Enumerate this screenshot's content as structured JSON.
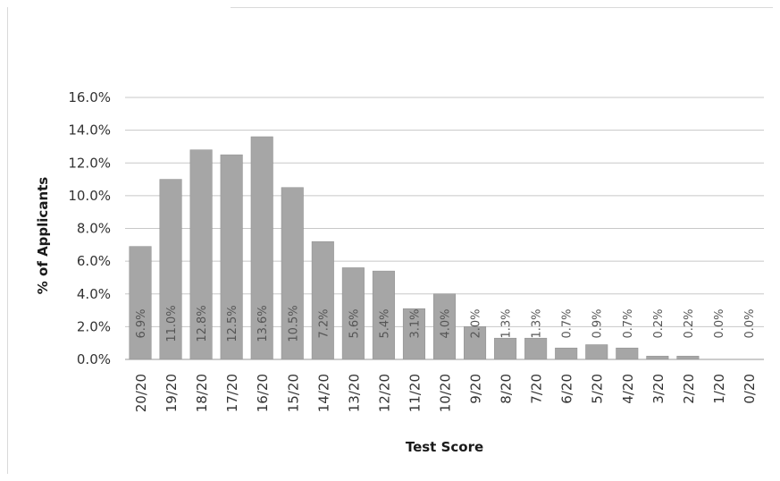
{
  "chart_data": {
    "type": "bar",
    "title": "",
    "xlabel": "Test Score",
    "ylabel": "% of Applicants",
    "categories": [
      "20/20",
      "19/20",
      "18/20",
      "17/20",
      "16/20",
      "15/20",
      "14/20",
      "13/20",
      "12/20",
      "11/20",
      "10/20",
      "9/20",
      "8/20",
      "7/20",
      "6/20",
      "5/20",
      "4/20",
      "3/20",
      "2/20",
      "1/20",
      "0/20"
    ],
    "values": [
      6.9,
      11.0,
      12.8,
      12.5,
      13.6,
      10.5,
      7.2,
      5.6,
      5.4,
      3.1,
      4.0,
      2.0,
      1.3,
      1.3,
      0.7,
      0.9,
      0.7,
      0.2,
      0.2,
      0.0,
      0.0
    ],
    "data_labels": [
      "6.9%",
      "11.0%",
      "12.8%",
      "12.5%",
      "13.6%",
      "10.5%",
      "7.2%",
      "5.6%",
      "5.4%",
      "3.1%",
      "4.0%",
      "2.0%",
      "1.3%",
      "1.3%",
      "0.7%",
      "0.9%",
      "0.7%",
      "0.2%",
      "0.2%",
      "0.0%",
      "0.0%"
    ],
    "yticks": [
      "0.0%",
      "2.0%",
      "4.0%",
      "6.0%",
      "8.0%",
      "10.0%",
      "12.0%",
      "14.0%",
      "16.0%"
    ],
    "ylim": [
      0,
      16
    ],
    "grid": true,
    "legend": "none",
    "bar_color": "#a6a6a6"
  }
}
